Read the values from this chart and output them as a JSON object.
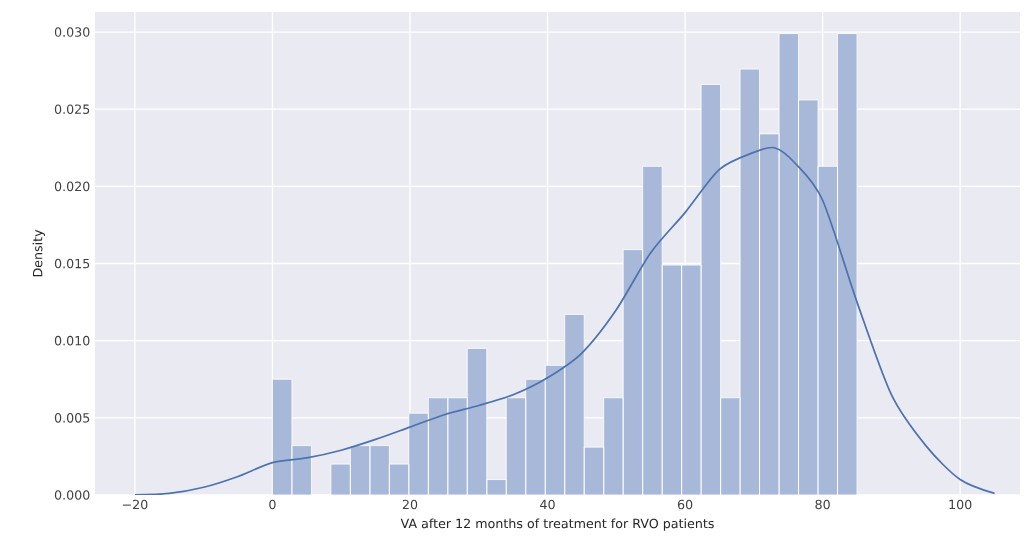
{
  "chart_data": {
    "type": "histogram",
    "xlabel": "VA after 12 months of treatment for RVO patients",
    "ylabel": "Density",
    "series": [
      {
        "color": "#a8b8d8",
        "bins": [
          0,
          2.83,
          5.67,
          8.5,
          11.33,
          14.17,
          17,
          19.83,
          22.67,
          25.5,
          28.33,
          31.17,
          34,
          36.83,
          39.67,
          42.5,
          45.33,
          48.17,
          51,
          53.83,
          56.67,
          59.5,
          62.33,
          65.17,
          68,
          70.83,
          73.67,
          76.5,
          79.33,
          82.17,
          85
        ],
        "values": [
          0.0075,
          0.0032,
          0,
          0.002,
          0.0032,
          0.0032,
          0.002,
          0.0053,
          0.0063,
          0.0063,
          0.0095,
          0.001,
          0.0063,
          0.0075,
          0.0084,
          0.0117,
          0.0031,
          0.0063,
          0.0159,
          0.0213,
          0.0149,
          0.0149,
          0.0266,
          0.0063,
          0.0276,
          0.0234,
          0.0299,
          0.0256,
          0.0213,
          0.0299
        ]
      },
      {
        "type": "line",
        "color": "#4c72b0",
        "x": [
          -20,
          -15,
          -10,
          -5,
          0,
          5,
          10,
          15,
          20,
          25,
          30,
          35,
          40,
          45,
          50,
          55,
          60,
          65,
          70,
          73,
          76,
          80,
          85,
          90,
          95,
          100,
          105
        ],
        "values": [
          0.0,
          0.0001,
          0.0005,
          0.0012,
          0.0021,
          0.0024,
          0.0029,
          0.0036,
          0.0044,
          0.0052,
          0.0058,
          0.0065,
          0.0076,
          0.0092,
          0.012,
          0.0157,
          0.0183,
          0.0211,
          0.0222,
          0.0225,
          0.0215,
          0.0191,
          0.0125,
          0.0065,
          0.0032,
          0.001,
          0.0001
        ]
      }
    ],
    "xlim": [
      -25.8,
      108.7
    ],
    "ylim": [
      0,
      0.0313
    ],
    "xticks": [
      {
        "value": -20,
        "label": "−20"
      },
      0,
      20,
      40,
      60,
      80,
      100
    ],
    "yticks": [
      {
        "value": 0,
        "label": "0.000"
      },
      {
        "value": 0.005,
        "label": "0.005"
      },
      {
        "value": 0.01,
        "label": "0.010"
      },
      {
        "value": 0.015,
        "label": "0.015"
      },
      {
        "value": 0.02,
        "label": "0.020"
      },
      {
        "value": 0.025,
        "label": "0.025"
      },
      {
        "value": 0.03,
        "label": "0.030"
      }
    ],
    "grid": true
  }
}
